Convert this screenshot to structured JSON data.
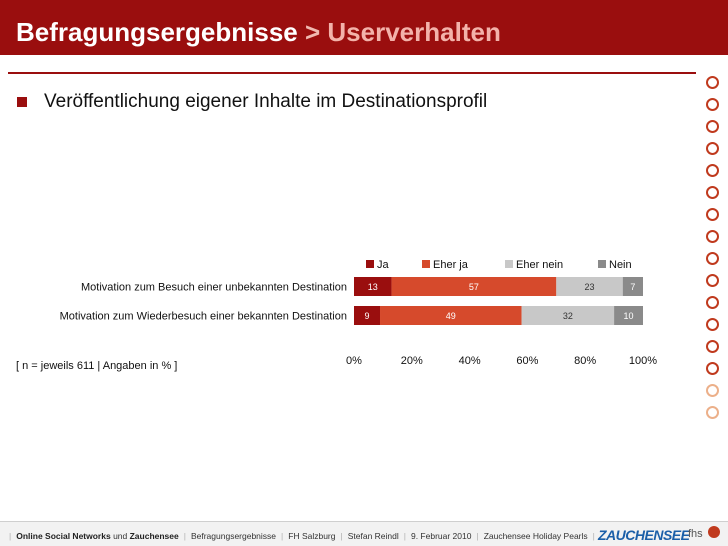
{
  "header": {
    "title_main": "Befragungsergebnisse",
    "title_sep": ">",
    "title_accent": "Userverhalten"
  },
  "bullet": {
    "text": "Veröffentlichung eigener Inhalte im Destinationsprofil"
  },
  "note": "[ n = jeweils 611  |  Angaben in % ]",
  "footer": {
    "items": [
      {
        "bold": "Online Social Networks",
        "rest": " und ",
        "bold2": "Zauchensee"
      },
      "Befragungsergebnisse",
      "FH Salzburg",
      "Stefan Reindl",
      "9. Februar 2010",
      "Zauchensee Holiday Pearls"
    ],
    "logo": "ZAUCHENSEE",
    "fhs": "fhs"
  },
  "colors": {
    "brand": "#9a0e0e",
    "ja": "#9a0e0e",
    "eher_ja": "#d64a2c",
    "eher_nein": "#c8c8c8",
    "nein": "#8a8a8a"
  },
  "chart_data": {
    "type": "bar",
    "orientation": "horizontal",
    "stacked": true,
    "categories": [
      "Motivation zum Besuch einer unbekannten Destination",
      "Motivation zum Wiederbesuch einer bekannten Destination"
    ],
    "series": [
      {
        "name": "Ja",
        "values": [
          13,
          9
        ],
        "color": "#9a0e0e"
      },
      {
        "name": "Eher ja",
        "values": [
          57,
          49
        ],
        "color": "#d64a2c"
      },
      {
        "name": "Eher nein",
        "values": [
          23,
          32
        ],
        "color": "#c8c8c8"
      },
      {
        "name": "Nein",
        "values": [
          7,
          10
        ],
        "color": "#8a8a8a"
      }
    ],
    "xlim": [
      0,
      100
    ],
    "xticks": [
      "0%",
      "20%",
      "40%",
      "60%",
      "80%",
      "100%"
    ],
    "legend": "top-right",
    "grid": false
  }
}
